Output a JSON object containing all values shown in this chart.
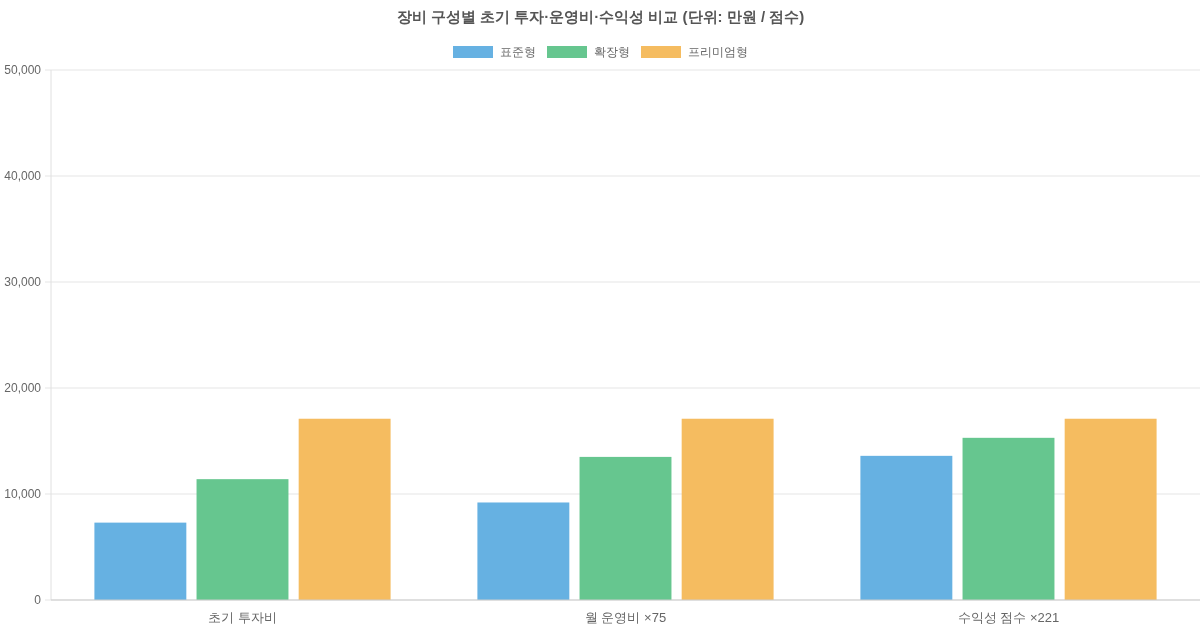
{
  "chart_data": {
    "type": "bar",
    "title": "장비 구성별 초기 투자·운영비·수익성 비교 (단위: 만원 / 점수)",
    "categories": [
      "초기 투자비",
      "월 운영비 ×75",
      "수익성 점수 ×221"
    ],
    "series": [
      {
        "name": "표준형",
        "color": "#66b1e2",
        "values": [
          7300,
          9200,
          13600
        ]
      },
      {
        "name": "확장형",
        "color": "#66c68f",
        "values": [
          11400,
          13500,
          15300
        ]
      },
      {
        "name": "프리미엄형",
        "color": "#f5bc60",
        "values": [
          17100,
          17100,
          17100
        ]
      }
    ],
    "ylim": [
      0,
      50000
    ],
    "yticks": [
      0,
      {
        "value": 10000,
        "label": "10,000"
      },
      {
        "value": 20000,
        "label": "20,000"
      },
      {
        "value": 30000,
        "label": "30,000"
      },
      {
        "value": 40000,
        "label": "40,000"
      },
      {
        "value": 50000,
        "label": "50,000"
      }
    ],
    "grid": "y",
    "legend": "top"
  }
}
